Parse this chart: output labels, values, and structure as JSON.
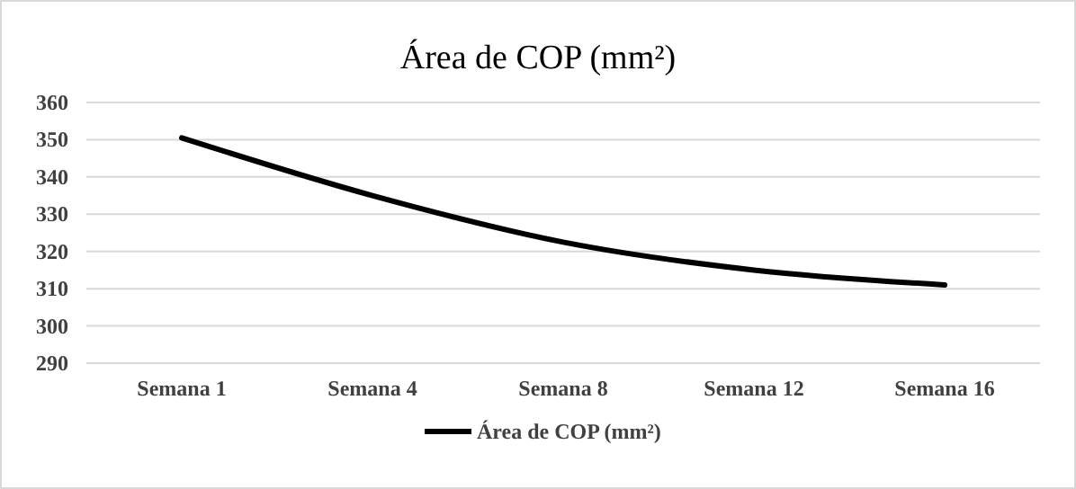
{
  "chart_data": {
    "type": "line",
    "title": "Área de COP (mm²)",
    "categories": [
      "Semana 1",
      "Semana 4",
      "Semana 8",
      "Semana 12",
      "Semana 16"
    ],
    "series": [
      {
        "name": "Área de COP (mm²)",
        "color": "#000000",
        "values": [
          350.5,
          335,
          322.5,
          315,
          311
        ]
      }
    ],
    "ylim": [
      290,
      360
    ],
    "yticks": [
      290,
      300,
      310,
      320,
      330,
      340,
      350,
      360
    ],
    "grid": "y",
    "legend": "bottom",
    "marker": "none"
  }
}
